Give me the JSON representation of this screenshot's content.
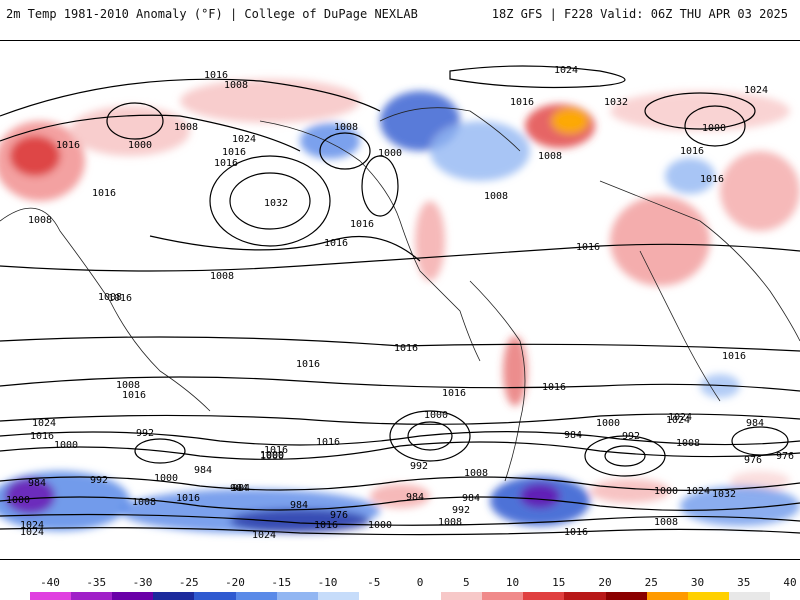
{
  "header": {
    "title": "2m Temp 1981-2010 Anomaly (°F) | College of DuPage NEXLAB",
    "run_info": "18Z GFS | F228 Valid: 06Z THU APR 03 2025"
  },
  "colorbar": {
    "ticks": [
      "-40",
      "-35",
      "-30",
      "-25",
      "-20",
      "-15",
      "-10",
      "-5",
      "0",
      "5",
      "10",
      "15",
      "20",
      "25",
      "30",
      "35",
      "40"
    ],
    "colors": [
      "#e040e0",
      "#a020c8",
      "#6a00a8",
      "#1c2a9c",
      "#2f5ad0",
      "#5a8ae8",
      "#92b6f2",
      "#c6dcfa",
      "#ffffff",
      "#ffffff",
      "#f7c8c8",
      "#f08a8a",
      "#e04040",
      "#b81818",
      "#8a0000",
      "#ff9a00",
      "#ffd000",
      "#e8e8e8"
    ]
  },
  "map": {
    "isobar_labels": [
      "1016",
      "1008",
      "1008",
      "1016",
      "1000",
      "1024",
      "1016",
      "1016",
      "1032",
      "1008",
      "1000",
      "1008",
      "1016",
      "1016",
      "1024",
      "1032",
      "1016",
      "1008",
      "1024",
      "1000",
      "1016",
      "1008",
      "1016",
      "1016",
      "1008",
      "1008",
      "1016",
      "1016",
      "1016",
      "1008",
      "1016",
      "1000",
      "1024",
      "1000",
      "992",
      "984",
      "1000",
      "992",
      "1008",
      "1000",
      "1016",
      "984",
      "976",
      "1008",
      "1024",
      "1016",
      "1000",
      "992",
      "984",
      "1016",
      "1016",
      "1000",
      "984",
      "1000",
      "992",
      "984",
      "1032",
      "1024",
      "976",
      "1024",
      "984",
      "1016",
      "1000",
      "1008",
      "976",
      "992",
      "1016",
      "1008",
      "1016",
      "984",
      "1024",
      "1000",
      "1024",
      "1016",
      "1008",
      "984",
      "1016",
      "984",
      "1016",
      "1024"
    ]
  }
}
